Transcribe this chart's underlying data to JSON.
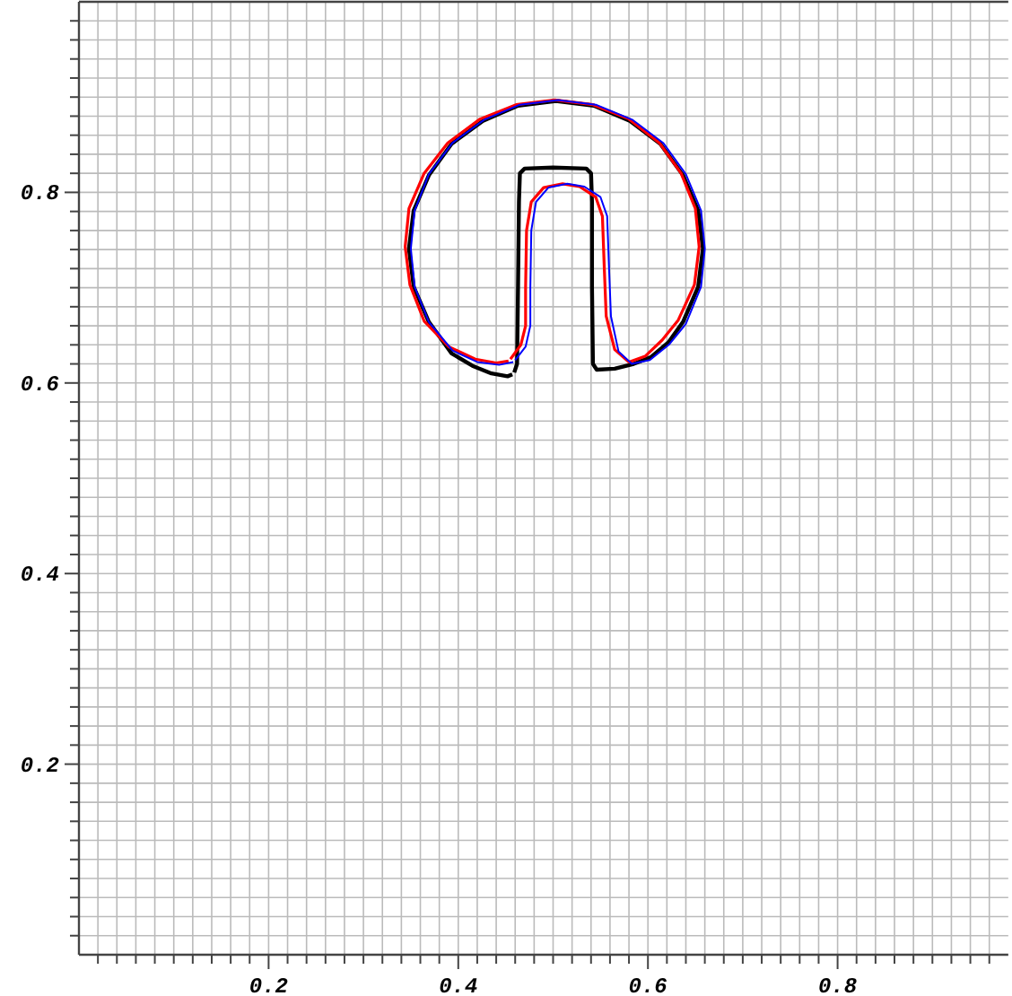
{
  "chart_data": {
    "type": "line",
    "xlim": [
      0,
      0.98
    ],
    "ylim": [
      0,
      1
    ],
    "xticks": [
      {
        "value": 0.02,
        "label": null
      },
      {
        "value": 0.04,
        "label": null
      },
      {
        "value": 0.06,
        "label": null
      },
      {
        "value": 0.08,
        "label": null
      },
      {
        "value": 0.1,
        "label": null
      },
      {
        "value": 0.12,
        "label": null
      },
      {
        "value": 0.14,
        "label": null
      },
      {
        "value": 0.16,
        "label": null
      },
      {
        "value": 0.18,
        "label": null
      },
      0.2,
      {
        "value": 0.22,
        "label": null
      },
      {
        "value": 0.24,
        "label": null
      },
      {
        "value": 0.26,
        "label": null
      },
      {
        "value": 0.28,
        "label": null
      },
      {
        "value": 0.3,
        "label": null
      },
      {
        "value": 0.32,
        "label": null
      },
      {
        "value": 0.34,
        "label": null
      },
      {
        "value": 0.36,
        "label": null
      },
      {
        "value": 0.38,
        "label": null
      },
      0.4,
      {
        "value": 0.42,
        "label": null
      },
      {
        "value": 0.44,
        "label": null
      },
      {
        "value": 0.46,
        "label": null
      },
      {
        "value": 0.48,
        "label": null
      },
      {
        "value": 0.5,
        "label": null
      },
      {
        "value": 0.52,
        "label": null
      },
      {
        "value": 0.54,
        "label": null
      },
      {
        "value": 0.56,
        "label": null
      },
      {
        "value": 0.58,
        "label": null
      },
      0.6,
      {
        "value": 0.62,
        "label": null
      },
      {
        "value": 0.64,
        "label": null
      },
      {
        "value": 0.66,
        "label": null
      },
      {
        "value": 0.68,
        "label": null
      },
      {
        "value": 0.7,
        "label": null
      },
      {
        "value": 0.72,
        "label": null
      },
      {
        "value": 0.74,
        "label": null
      },
      {
        "value": 0.76,
        "label": null
      },
      {
        "value": 0.78,
        "label": null
      },
      0.8,
      {
        "value": 0.82,
        "label": null
      },
      {
        "value": 0.84,
        "label": null
      },
      {
        "value": 0.86,
        "label": null
      },
      {
        "value": 0.88,
        "label": null
      },
      {
        "value": 0.9,
        "label": null
      },
      {
        "value": 0.92,
        "label": null
      },
      {
        "value": 0.94,
        "label": null
      },
      {
        "value": 0.96,
        "label": null
      }
    ],
    "yticks": [
      {
        "value": 0.02,
        "label": null
      },
      {
        "value": 0.04,
        "label": null
      },
      {
        "value": 0.06,
        "label": null
      },
      {
        "value": 0.08,
        "label": null
      },
      {
        "value": 0.1,
        "label": null
      },
      {
        "value": 0.12,
        "label": null
      },
      {
        "value": 0.14,
        "label": null
      },
      {
        "value": 0.16,
        "label": null
      },
      {
        "value": 0.18,
        "label": null
      },
      0.2,
      {
        "value": 0.22,
        "label": null
      },
      {
        "value": 0.24,
        "label": null
      },
      {
        "value": 0.26,
        "label": null
      },
      {
        "value": 0.28,
        "label": null
      },
      {
        "value": 0.3,
        "label": null
      },
      {
        "value": 0.32,
        "label": null
      },
      {
        "value": 0.34,
        "label": null
      },
      {
        "value": 0.36,
        "label": null
      },
      {
        "value": 0.38,
        "label": null
      },
      0.4,
      {
        "value": 0.42,
        "label": null
      },
      {
        "value": 0.44,
        "label": null
      },
      {
        "value": 0.46,
        "label": null
      },
      {
        "value": 0.48,
        "label": null
      },
      {
        "value": 0.5,
        "label": null
      },
      {
        "value": 0.52,
        "label": null
      },
      {
        "value": 0.54,
        "label": null
      },
      {
        "value": 0.56,
        "label": null
      },
      {
        "value": 0.58,
        "label": null
      },
      0.6,
      {
        "value": 0.62,
        "label": null
      },
      {
        "value": 0.64,
        "label": null
      },
      {
        "value": 0.66,
        "label": null
      },
      {
        "value": 0.68,
        "label": null
      },
      {
        "value": 0.7,
        "label": null
      },
      {
        "value": 0.72,
        "label": null
      },
      {
        "value": 0.74,
        "label": null
      },
      {
        "value": 0.76,
        "label": null
      },
      {
        "value": 0.78,
        "label": null
      },
      0.8,
      {
        "value": 0.82,
        "label": null
      },
      {
        "value": 0.84,
        "label": null
      },
      {
        "value": 0.86,
        "label": null
      },
      {
        "value": 0.88,
        "label": null
      },
      {
        "value": 0.9,
        "label": null
      },
      {
        "value": 0.92,
        "label": null
      },
      {
        "value": 0.94,
        "label": null
      },
      {
        "value": 0.96,
        "label": null
      },
      {
        "value": 0.98,
        "label": null
      }
    ],
    "grid": true,
    "marker": "none",
    "line_style": "solid",
    "series": [
      {
        "color": "#000000",
        "x": [
          0.459,
          0.462,
          0.463,
          0.464,
          0.465,
          0.47,
          0.5,
          0.535,
          0.54,
          0.541,
          0.541,
          0.542,
          0.546,
          0.565,
          0.585,
          0.603,
          0.622,
          0.637,
          0.653,
          0.658,
          0.653,
          0.637,
          0.613,
          0.581,
          0.543,
          0.503,
          0.463,
          0.426,
          0.393,
          0.369,
          0.353,
          0.348,
          0.353,
          0.369,
          0.393,
          0.415,
          0.435,
          0.452,
          0.457
        ],
        "values": [
          0.611,
          0.62,
          0.7,
          0.79,
          0.82,
          0.825,
          0.826,
          0.825,
          0.82,
          0.79,
          0.7,
          0.62,
          0.614,
          0.615,
          0.62,
          0.627,
          0.643,
          0.664,
          0.701,
          0.741,
          0.781,
          0.818,
          0.851,
          0.875,
          0.891,
          0.896,
          0.891,
          0.875,
          0.851,
          0.818,
          0.781,
          0.741,
          0.701,
          0.664,
          0.631,
          0.618,
          0.61,
          0.607,
          0.609
        ]
      },
      {
        "color": "#ff0000",
        "x": [
          0.455,
          0.466,
          0.471,
          0.471,
          0.472,
          0.477,
          0.49,
          0.51,
          0.528,
          0.545,
          0.552,
          0.554,
          0.556,
          0.565,
          0.58,
          0.597,
          0.615,
          0.632,
          0.649,
          0.654,
          0.65,
          0.635,
          0.612,
          0.58,
          0.542,
          0.502,
          0.461,
          0.423,
          0.389,
          0.364,
          0.348,
          0.344,
          0.349,
          0.364,
          0.39,
          0.418,
          0.44,
          0.453
        ],
        "values": [
          0.625,
          0.64,
          0.66,
          0.7,
          0.76,
          0.79,
          0.805,
          0.809,
          0.806,
          0.795,
          0.775,
          0.72,
          0.67,
          0.635,
          0.622,
          0.628,
          0.645,
          0.666,
          0.703,
          0.743,
          0.783,
          0.82,
          0.852,
          0.877,
          0.892,
          0.897,
          0.892,
          0.877,
          0.852,
          0.82,
          0.783,
          0.743,
          0.703,
          0.665,
          0.638,
          0.625,
          0.621,
          0.623
        ]
      },
      {
        "color": "#0000ff",
        "x": [
          0.46,
          0.471,
          0.476,
          0.476,
          0.477,
          0.482,
          0.495,
          0.515,
          0.533,
          0.55,
          0.557,
          0.559,
          0.561,
          0.569,
          0.583,
          0.602,
          0.622,
          0.64,
          0.656,
          0.66,
          0.656,
          0.64,
          0.616,
          0.584,
          0.545,
          0.505,
          0.465,
          0.427,
          0.394,
          0.369,
          0.354,
          0.35,
          0.354,
          0.369,
          0.394,
          0.42,
          0.443,
          0.458
        ],
        "values": [
          0.624,
          0.638,
          0.66,
          0.7,
          0.76,
          0.79,
          0.805,
          0.809,
          0.806,
          0.795,
          0.775,
          0.72,
          0.67,
          0.633,
          0.62,
          0.624,
          0.64,
          0.662,
          0.701,
          0.741,
          0.781,
          0.819,
          0.852,
          0.876,
          0.892,
          0.897,
          0.892,
          0.876,
          0.852,
          0.819,
          0.781,
          0.741,
          0.701,
          0.664,
          0.634,
          0.622,
          0.619,
          0.622
        ]
      }
    ]
  }
}
